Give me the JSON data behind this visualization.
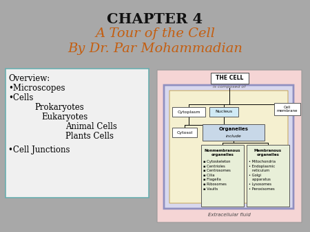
{
  "bg_color": "#a8a8a8",
  "title1": "CHAPTER 4",
  "title2": "A Tour of the Cell",
  "title3": "By Dr. Par Mohammadian",
  "title1_color": "#111111",
  "title23_color": "#c45e10",
  "title1_fs": 15,
  "title23_fs": 14,
  "overview_box_fc": "#f0f0f0",
  "overview_box_ec": "#6aafb0",
  "diag_outer_fc": "#f5d5d5",
  "diag_inner_fc": "#d8d8ee",
  "diag_inner_ec": "#9090c0",
  "cyto_area_fc": "#f5f0d0",
  "cyto_area_ec": "#c8aa66",
  "org_box_fc": "#c8d8e8",
  "nm_box_fc": "#e8efd8",
  "mb_box_fc": "#e8efd8",
  "nuc_box_fc": "#d0eaf5",
  "white_box_fc": "#ffffff"
}
